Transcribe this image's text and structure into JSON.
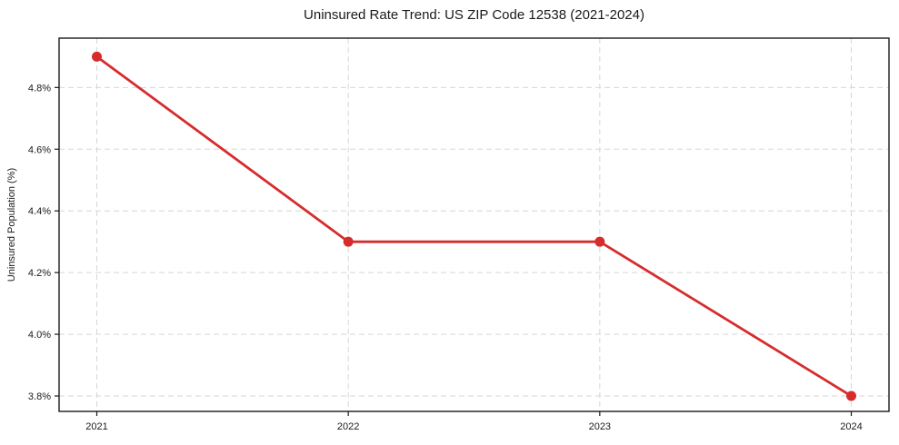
{
  "chart_data": {
    "type": "line",
    "title": "Uninsured Rate Trend: US ZIP Code 12538 (2021-2024)",
    "xlabel": "",
    "ylabel": "Uninsured Population (%)",
    "x": [
      2021,
      2022,
      2023,
      2024
    ],
    "series": [
      {
        "values": [
          4.9,
          4.3,
          4.3,
          3.8
        ]
      }
    ],
    "xlim": [
      2020.85,
      2024.15
    ],
    "ylim": [
      3.75,
      4.96
    ],
    "xtick_values": [
      2021,
      2022,
      2023,
      2024
    ],
    "xtick_labels": [
      "2021",
      "2022",
      "2023",
      "2024"
    ],
    "ytick_values": [
      3.8,
      4.0,
      4.2,
      4.4,
      4.6,
      4.8
    ],
    "ytick_labels": [
      "3.8%",
      "4.0%",
      "4.2%",
      "4.4%",
      "4.6%",
      "4.8%"
    ],
    "grid": true,
    "grid_style": "dashed",
    "legend": "none",
    "line_color": "#d62c2c",
    "grid_color": "#d6d6d6",
    "axis_color": "#1a1a1a"
  }
}
